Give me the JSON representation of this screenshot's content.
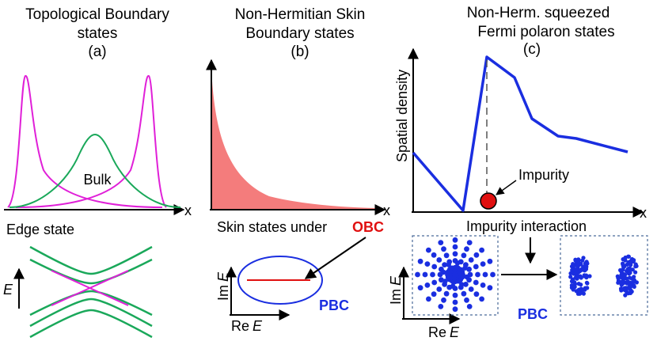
{
  "panel_a": {
    "title_line1": "Topological Boundary",
    "title_line2": "states",
    "tag": "(a)",
    "x_axis_label": "x",
    "bulk_label": "Bulk",
    "edge_state_label": "Edge state",
    "energy_label": "E"
  },
  "panel_b": {
    "title_line1": "Non-Hermitian Skin",
    "title_line2": "Boundary states",
    "tag": "(b)",
    "x_axis_label": "x",
    "skin_text": "Skin states under",
    "obc_label": "OBC",
    "pbc_label": "PBC",
    "im_label": "Im",
    "re_label": "Re",
    "e_symbol": "E"
  },
  "panel_c": {
    "title_line1": "Non-Herm. squeezed",
    "title_line2": "Fermi polaron states",
    "tag": "(c)",
    "y_axis_label": "Spatial density",
    "x_axis_label": "x",
    "impurity_label": "Impurity",
    "interaction_label": "Impurity interaction",
    "pbc_label": "PBC",
    "im_label": "Im",
    "re_label": "Re",
    "e_symbol": "E"
  },
  "colors": {
    "magenta": "#e020d8",
    "green": "#1aa85a",
    "salmon": "#f47c7c",
    "red": "#e01010",
    "blue": "#1a2ee0",
    "dash_box": "#4a6a9a"
  }
}
